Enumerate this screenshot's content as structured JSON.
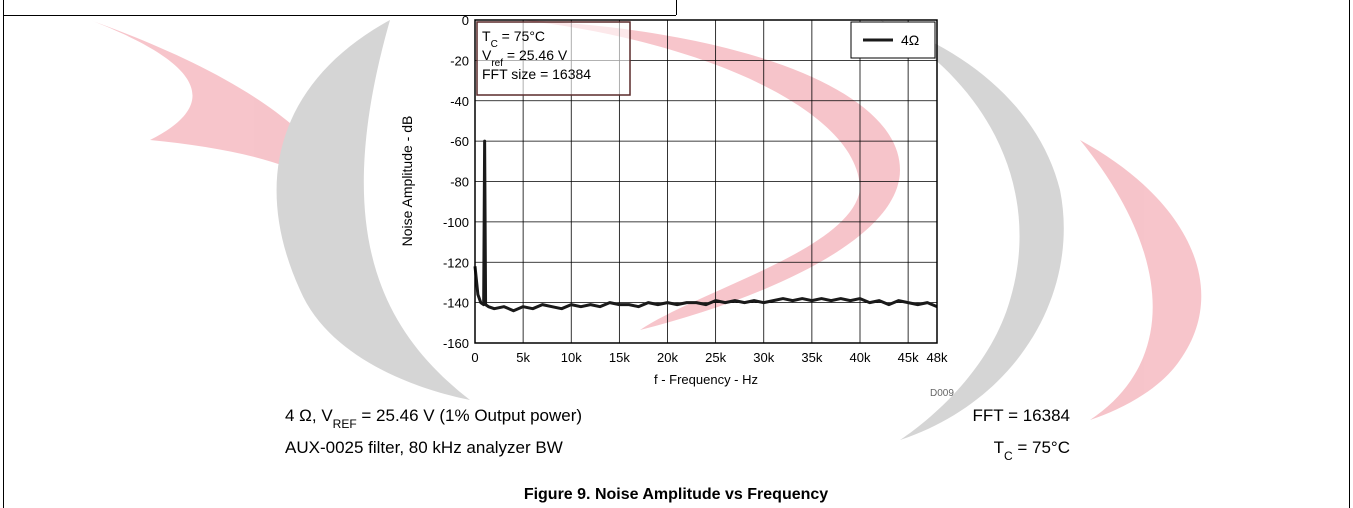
{
  "chart_data": {
    "type": "line",
    "caption": "Figure 9. Noise Amplitude vs Frequency",
    "xlabel": "f - Frequency - Hz",
    "ylabel": "Noise Amplitude - dB",
    "code": "D009",
    "annotation": [
      [
        "T",
        "C",
        " = 75°C"
      ],
      [
        "V",
        "ref",
        " = 25.46 V"
      ],
      [
        "FFT size = 16384"
      ]
    ],
    "conditions": [
      [
        "4 Ω, V",
        "REF",
        " = 25.46 V (1% Output power)"
      ],
      [
        "FFT = 16384"
      ],
      [
        "AUX-0025 filter, 80 kHz analyzer BW"
      ],
      [
        "T",
        "C",
        " = 75°C"
      ]
    ],
    "x": [
      0,
      300,
      600,
      900,
      1000,
      1100,
      1400,
      2000,
      3000,
      4000,
      5000,
      6000,
      7000,
      8000,
      9000,
      10000,
      11000,
      12000,
      13000,
      14000,
      15000,
      16000,
      17000,
      18000,
      19000,
      20000,
      21000,
      22000,
      23000,
      24000,
      25000,
      26000,
      27000,
      28000,
      29000,
      30000,
      31000,
      32000,
      33000,
      34000,
      35000,
      36000,
      37000,
      38000,
      39000,
      40000,
      41000,
      42000,
      43000,
      44000,
      45000,
      46000,
      47000,
      48000
    ],
    "series": [
      {
        "name": "4Ω",
        "color": "#1a1a1a",
        "values": [
          -122,
          -136,
          -140,
          -141,
          -60,
          -141,
          -142,
          -143,
          -142,
          -144,
          -142,
          -143,
          -141,
          -142,
          -143,
          -141,
          -142,
          -141,
          -142,
          -140,
          -141,
          -141,
          -142,
          -140,
          -141,
          -140,
          -141,
          -140,
          -140,
          -141,
          -139,
          -140,
          -139,
          -140,
          -139,
          -140,
          -139,
          -138,
          -139,
          -138,
          -139,
          -138,
          -139,
          -138,
          -139,
          -138,
          -140,
          -139,
          -141,
          -139,
          -140,
          -141,
          -140,
          -142
        ]
      }
    ],
    "xlim": [
      0,
      48000
    ],
    "xticks": [
      0,
      {
        "value": 5000,
        "label": "5k"
      },
      {
        "value": 10000,
        "label": "10k"
      },
      {
        "value": 15000,
        "label": "15k"
      },
      {
        "value": 20000,
        "label": "20k"
      },
      {
        "value": 25000,
        "label": "25k"
      },
      {
        "value": 30000,
        "label": "30k"
      },
      {
        "value": 35000,
        "label": "35k"
      },
      {
        "value": 40000,
        "label": "40k"
      },
      {
        "value": 45000,
        "label": "45k"
      },
      {
        "value": 48000,
        "label": "48k"
      }
    ],
    "ylim": [
      -160,
      0
    ],
    "yticks": [
      0,
      -20,
      -40,
      -60,
      -80,
      -100,
      -120,
      -140,
      -160
    ],
    "grid": true,
    "legend": "upper right"
  }
}
